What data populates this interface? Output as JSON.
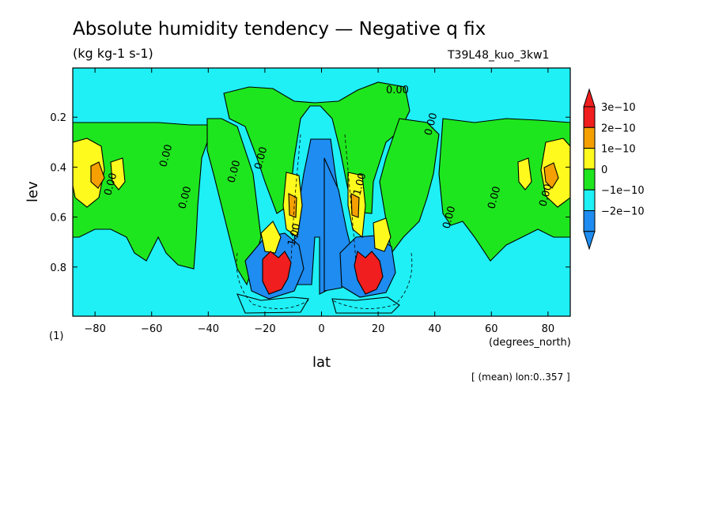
{
  "chart_data": {
    "type": "heatmap",
    "title": "Absolute humidity tendency — Negative q fix",
    "units": "(kg kg-1 s-1)",
    "run_id": "T39L48_kuo_3kw1",
    "figure_label": "(1)",
    "xlabel": "lat",
    "x_units": "(degrees_north)",
    "ylabel": "lev",
    "footnote": "[ (mean) lon:0..357 ]",
    "xlim": [
      -87.86,
      87.86
    ],
    "ylim": [
      0.997,
      0.003
    ],
    "x_ticks": [
      {
        "value": -80,
        "label": "−80"
      },
      {
        "value": -60,
        "label": "−60"
      },
      {
        "value": -40,
        "label": "−40"
      },
      {
        "value": -20,
        "label": "−20"
      },
      {
        "value": 0,
        "label": "0"
      },
      {
        "value": 20,
        "label": "20"
      },
      {
        "value": 40,
        "label": "40"
      },
      {
        "value": 60,
        "label": "60"
      },
      {
        "value": 80,
        "label": "80"
      }
    ],
    "y_ticks": [
      {
        "value": 0.2,
        "label": "0.2"
      },
      {
        "value": 0.4,
        "label": "0.4"
      },
      {
        "value": 0.6,
        "label": "0.6"
      },
      {
        "value": 0.8,
        "label": "0.8"
      }
    ],
    "colorbar": [
      {
        "label": "3e−10",
        "color": "#f01e1e",
        "value": 3e-10
      },
      {
        "label": "2e−10",
        "color": "#f5a000",
        "value": 2e-10
      },
      {
        "label": "1e−10",
        "color": "#fffa1e",
        "value": 1e-10
      },
      {
        "label": "0",
        "color": "#1ee61e",
        "value": 0
      },
      {
        "label": "−1e−10",
        "color": "#1ef0f5",
        "value": -1e-10
      },
      {
        "label": "−2e−10",
        "color": "#1e8cf0",
        "value": -2e-10
      }
    ],
    "colorbar_over_color": "#f01e1e",
    "colorbar_under_color": "#1e8cf0",
    "contour_labels": [
      "0.00",
      "0.00",
      "0.00",
      "0.00",
      "0.00",
      "0.00",
      "0.00",
      "0.00",
      "0.00",
      "0.00",
      "1.00",
      "1.00"
    ],
    "background_color": "#1ef0f5",
    "grid": false
  }
}
